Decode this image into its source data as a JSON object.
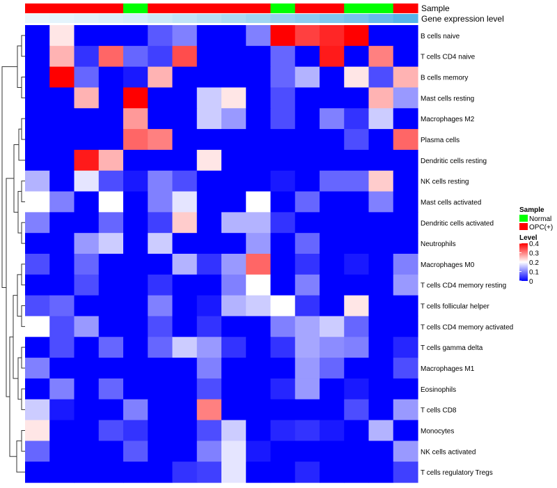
{
  "chart_data": {
    "type": "heatmap",
    "annotations": {
      "sample_label": "Sample",
      "level_label": "Gene expression level",
      "sample_groups": [
        "OPC(+)",
        "OPC(+)",
        "OPC(+)",
        "OPC(+)",
        "Normal",
        "OPC(+)",
        "OPC(+)",
        "OPC(+)",
        "OPC(+)",
        "OPC(+)",
        "Normal",
        "OPC(+)",
        "OPC(+)",
        "Normal",
        "Normal",
        "OPC(+)"
      ],
      "expression_level": [
        0.02,
        0.03,
        0.04,
        0.05,
        0.06,
        0.08,
        0.1,
        0.12,
        0.14,
        0.16,
        0.18,
        0.2,
        0.22,
        0.24,
        0.27,
        0.3
      ]
    },
    "rows": [
      "B cells naive",
      "T cells CD4 naive",
      "B cells memory",
      "Mast cells resting",
      "Macrophages M2",
      "Plasma cells",
      "Dendritic cells resting",
      "NK cells resting",
      "Mast cells activated",
      "Dendritic cells activated",
      "Neutrophils",
      "Macrophages M0",
      "T cells CD4 memory resting",
      "T cells follicular helper",
      "T cells CD4 memory activated",
      "T cells gamma delta",
      "Macrophages M1",
      "Eosinophils",
      "T cells CD8",
      "Monocytes",
      "NK cells activated",
      "T cells regulatory  Tregs"
    ],
    "values": [
      [
        0,
        0.22,
        0,
        0,
        0,
        0.07,
        0.1,
        0,
        0,
        0.1,
        0.4,
        0.35,
        0.37,
        0.4,
        0,
        0
      ],
      [
        0,
        0.26,
        0.04,
        0.32,
        0.08,
        0.05,
        0.34,
        0,
        0,
        0,
        0.08,
        0,
        0.38,
        0,
        0.3,
        0
      ],
      [
        0,
        0.4,
        0.08,
        0,
        0.02,
        0.26,
        0,
        0,
        0,
        0,
        0.08,
        0.14,
        0,
        0.22,
        0.06,
        0.26
      ],
      [
        0,
        0,
        0.26,
        0,
        0.4,
        0,
        0,
        0.16,
        0.22,
        0,
        0.06,
        0,
        0,
        0,
        0.26,
        0.12
      ],
      [
        0,
        0,
        0,
        0,
        0.28,
        0,
        0,
        0.16,
        0.12,
        0,
        0.06,
        0,
        0.1,
        0.04,
        0.16,
        0
      ],
      [
        0,
        0,
        0,
        0,
        0.32,
        0.3,
        0,
        0,
        0,
        0,
        0,
        0,
        0,
        0.06,
        0,
        0.32
      ],
      [
        0,
        0,
        0.38,
        0.26,
        0,
        0,
        0,
        0.22,
        0,
        0,
        0,
        0,
        0,
        0,
        0,
        0
      ],
      [
        0.14,
        0,
        0.18,
        0.06,
        0.02,
        0.1,
        0.06,
        0,
        0,
        0,
        0.02,
        0,
        0.08,
        0.08,
        0.24,
        0
      ],
      [
        0.2,
        0.1,
        0,
        0.2,
        0,
        0.1,
        0.18,
        0,
        0,
        0.2,
        0,
        0.08,
        0,
        0,
        0.1,
        0
      ],
      [
        0.1,
        0,
        0,
        0.08,
        0,
        0.05,
        0.24,
        0,
        0.14,
        0.14,
        0.04,
        0,
        0,
        0,
        0,
        0
      ],
      [
        0,
        0,
        0.12,
        0.16,
        0,
        0.16,
        0,
        0,
        0,
        0.12,
        0,
        0.08,
        0,
        0,
        0,
        0
      ],
      [
        0.06,
        0,
        0.08,
        0,
        0,
        0,
        0.14,
        0.04,
        0.12,
        0.32,
        0,
        0.04,
        0,
        0.02,
        0,
        0.1
      ],
      [
        0,
        0,
        0.06,
        0,
        0,
        0.04,
        0,
        0,
        0.1,
        0.2,
        0,
        0.1,
        0,
        0,
        0,
        0.12
      ],
      [
        0.06,
        0.08,
        0,
        0,
        0,
        0.1,
        0,
        0.02,
        0.14,
        0.16,
        0.2,
        0.04,
        0,
        0.22,
        0,
        0
      ],
      [
        0.2,
        0.06,
        0.12,
        0,
        0,
        0.06,
        0,
        0.04,
        0,
        0,
        0.1,
        0.13,
        0.16,
        0.08,
        0,
        0
      ],
      [
        0,
        0.06,
        0,
        0.08,
        0,
        0.08,
        0.16,
        0.12,
        0.04,
        0,
        0.04,
        0.13,
        0.11,
        0.1,
        0,
        0.03
      ],
      [
        0.1,
        0,
        0,
        0,
        0,
        0,
        0,
        0.1,
        0,
        0,
        0,
        0.12,
        0.08,
        0,
        0,
        0.06
      ],
      [
        0,
        0.1,
        0,
        0.08,
        0,
        0,
        0,
        0.06,
        0,
        0,
        0.03,
        0.12,
        0,
        0.02,
        0,
        0
      ],
      [
        0.16,
        0.02,
        0,
        0,
        0.1,
        0,
        0,
        0.3,
        0,
        0,
        0,
        0,
        0,
        0.06,
        0,
        0.12
      ],
      [
        0.22,
        0,
        0,
        0.06,
        0.04,
        0,
        0,
        0.06,
        0.16,
        0,
        0.03,
        0.04,
        0.02,
        0,
        0.14,
        0
      ],
      [
        0.08,
        0,
        0,
        0,
        0.07,
        0,
        0,
        0.1,
        0.18,
        0.02,
        0,
        0,
        0,
        0,
        0,
        0.12
      ],
      [
        0,
        0,
        0,
        0,
        0,
        0,
        0.04,
        0.05,
        0.18,
        0,
        0,
        0.03,
        0,
        0,
        0,
        0.05
      ]
    ],
    "legend": {
      "sample_title": "Sample",
      "sample_items": [
        {
          "label": "Normal",
          "color": "#00ff00"
        },
        {
          "label": "OPC(+)",
          "color": "#ff0000"
        }
      ],
      "level_title": "Level",
      "level_ticks": [
        "0.4",
        "0.3",
        "0.2",
        "0.1",
        "0"
      ],
      "level_range": [
        0,
        0.4
      ]
    },
    "colors": {
      "low": "#0000ff",
      "mid": "#ffffff",
      "high": "#ff0000",
      "annotation_low": "#ffffff",
      "annotation_high": "#56b4e9"
    }
  }
}
